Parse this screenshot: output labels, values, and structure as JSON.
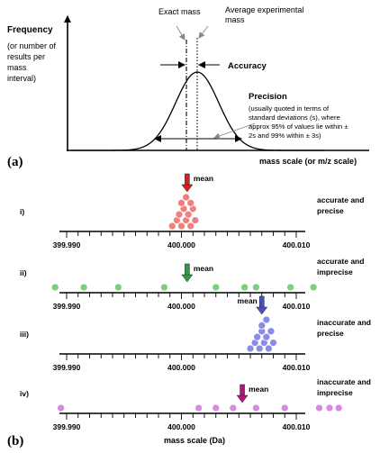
{
  "panel_a": {
    "label": "(a)",
    "y_title": "Frequency",
    "y_note": [
      "(or number of",
      "results per",
      "mass",
      "interval)"
    ],
    "exact_mass_label": "Exact mass",
    "avg_mass_label": [
      "Average experimental",
      "mass"
    ],
    "accuracy_label": "Accuracy",
    "precision_title": "Precision",
    "precision_note": [
      "(usually quoted in terms of",
      "standard deviations (s), where",
      "approx 95% of values lie within ±",
      "2s and 99% within ± 3s)"
    ],
    "x_title": "mass scale (or m/z scale)"
  },
  "panel_b": {
    "label": "(b)",
    "x_title": "mass scale (Da)",
    "tick_labels": [
      "399.990",
      "400.000",
      "400.010"
    ],
    "mean_label": "mean",
    "rows": [
      {
        "numeral": "i)",
        "desc": [
          "accurate and",
          "precise"
        ],
        "color": "#ef8080",
        "arrow_color": "#d42020",
        "mean": 400.0005,
        "values": [
          399.9992,
          399.9996,
          400.0,
          400.0004,
          400.0008,
          400.0012,
          399.9998,
          400.0002,
          400.0006,
          400.001,
          400.0,
          400.0004,
          400.0008
        ]
      },
      {
        "numeral": "ii)",
        "desc": [
          "accurate and",
          "imprecise"
        ],
        "color": "#7ccf7c",
        "arrow_color": "#2e9a4a",
        "mean": 400.0005,
        "values": [
          399.989,
          399.9915,
          399.9945,
          399.9985,
          400.003,
          400.0065,
          400.0095,
          400.0115,
          400.0055
        ]
      },
      {
        "numeral": "iii)",
        "desc": [
          "inaccurate and",
          "precise"
        ],
        "color": "#8a8ce6",
        "arrow_color": "#4a4fc4",
        "mean": 400.007,
        "values": [
          400.006,
          400.0064,
          400.0068,
          400.0072,
          400.0076,
          400.008,
          400.0066,
          400.007,
          400.0074,
          400.0078,
          400.007,
          400.0074
        ]
      },
      {
        "numeral": "iv)",
        "desc": [
          "inaccurate and",
          "imprecise"
        ],
        "color": "#d78ae0",
        "arrow_color": "#b0157a",
        "mean": 400.0053,
        "values": [
          399.9895,
          400.0015,
          400.003,
          400.0045,
          400.0065,
          400.009,
          400.012,
          400.0129,
          400.0137
        ]
      }
    ]
  }
}
